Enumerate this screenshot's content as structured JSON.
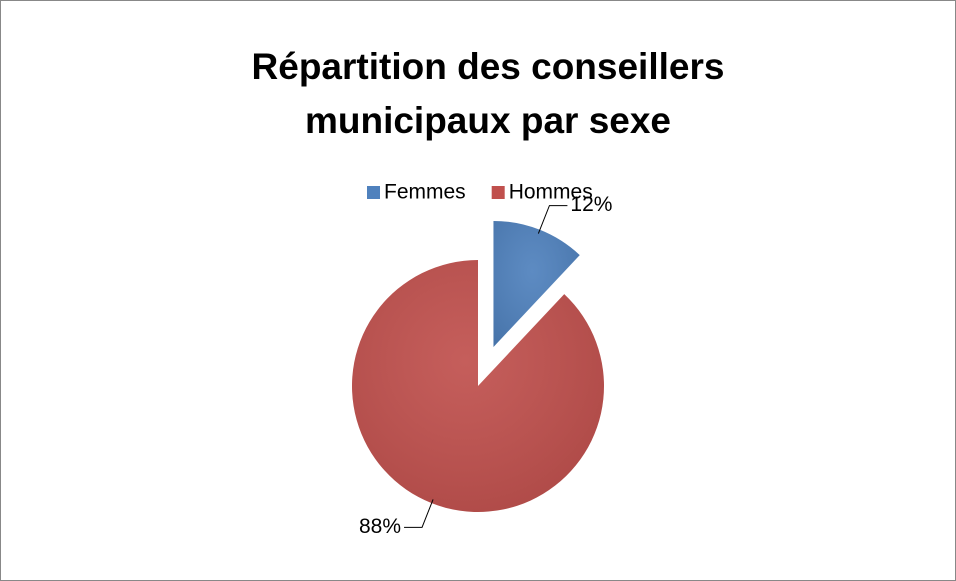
{
  "chart_data": {
    "type": "pie",
    "title": "Répartition des conseillers municipaux par sexe",
    "categories": [
      "Femmes",
      "Hommes"
    ],
    "values": [
      12,
      88
    ],
    "value_labels": [
      "12%",
      "88%"
    ],
    "colors": [
      "#4f81bd",
      "#c0504d"
    ],
    "legend": "top"
  }
}
